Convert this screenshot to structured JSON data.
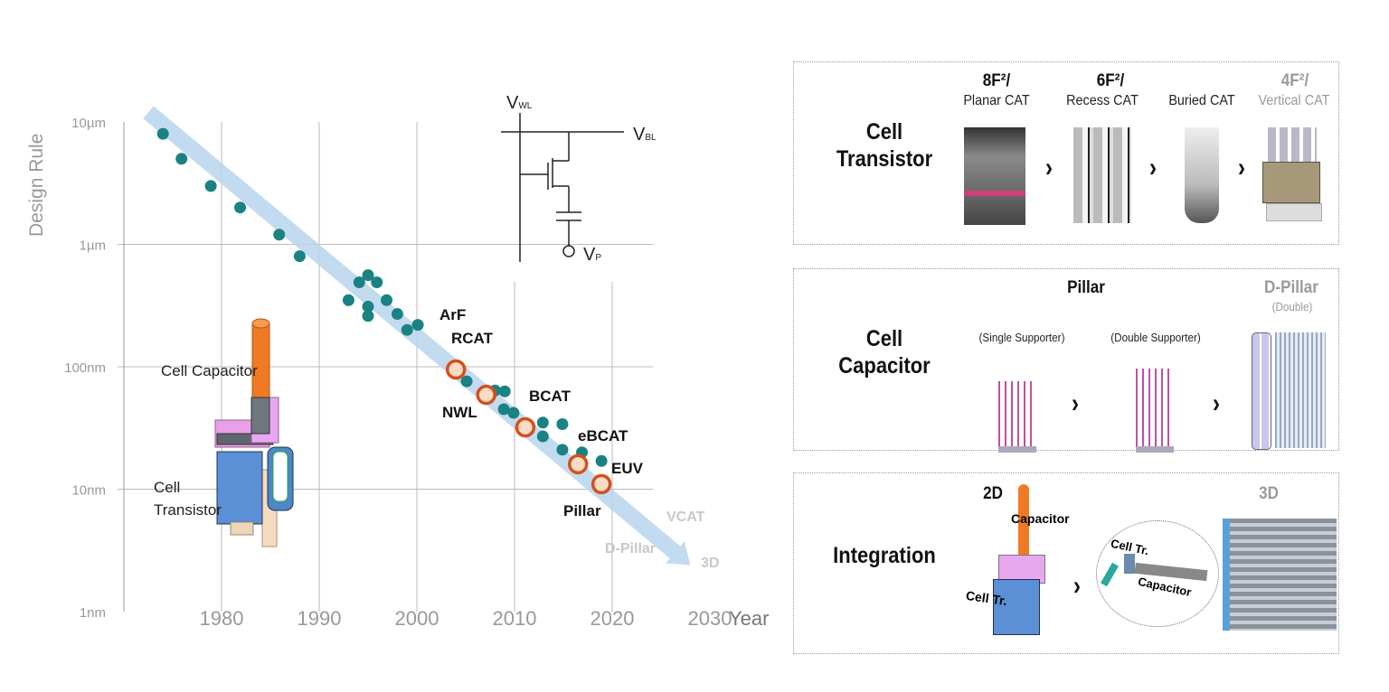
{
  "chart_data": {
    "type": "scatter",
    "title": "",
    "xlabel": "Year",
    "ylabel": "Design Rule",
    "xlim": [
      1970,
      2030
    ],
    "ylim_nm": [
      1,
      10000
    ],
    "yscale": "log",
    "grid": true,
    "xticks": [
      {
        "value": 1980,
        "label": "1980"
      },
      {
        "value": 1990,
        "label": "1990"
      },
      {
        "value": 2000,
        "label": "2000"
      },
      {
        "value": 2010,
        "label": "2010"
      },
      {
        "value": 2020,
        "label": "2020"
      },
      {
        "value": 2030,
        "label": "2030"
      }
    ],
    "yticks": [
      {
        "value": 10000,
        "label": "10µm"
      },
      {
        "value": 1000,
        "label": "1µm"
      },
      {
        "value": 100,
        "label": "100nm"
      },
      {
        "value": 10,
        "label": "10nm"
      },
      {
        "value": 1,
        "label": "1nm"
      }
    ],
    "series": [
      {
        "marker": "dot",
        "color": "#1a8282",
        "points": [
          [
            1974.0,
            8000
          ],
          [
            1975.9,
            5000
          ],
          [
            1978.9,
            3000
          ],
          [
            1981.9,
            2000
          ],
          [
            1985.9,
            1200
          ],
          [
            1988.0,
            800
          ],
          [
            1993.0,
            350
          ],
          [
            1994.1,
            490
          ],
          [
            1995.0,
            560
          ],
          [
            1995.9,
            490
          ],
          [
            1996.9,
            350
          ],
          [
            1995.0,
            310
          ],
          [
            1995.0,
            260
          ],
          [
            1998.0,
            270
          ],
          [
            1999.0,
            200
          ],
          [
            2000.1,
            220
          ],
          [
            2005.1,
            76
          ],
          [
            2008.0,
            64
          ],
          [
            2009.0,
            63
          ],
          [
            2008.9,
            45
          ],
          [
            2009.9,
            42
          ],
          [
            2012.9,
            35
          ],
          [
            2012.9,
            27
          ],
          [
            2014.9,
            34
          ],
          [
            2014.9,
            21
          ],
          [
            2016.9,
            20
          ],
          [
            2018.9,
            17
          ]
        ]
      },
      {
        "marker": "ring",
        "color": "#d4501e",
        "fill": "#f8dcc4",
        "points": [
          [
            2004.0,
            95
          ],
          [
            2007.1,
            59
          ],
          [
            2011.1,
            32
          ],
          [
            2016.5,
            16
          ],
          [
            2018.9,
            11
          ]
        ]
      }
    ],
    "trend_arrow": {
      "color": "#b9d5ee",
      "from": [
        1972.5,
        12000
      ],
      "to": [
        2028,
        2.4
      ]
    },
    "annotations": {
      "arf": "ArF",
      "rcat": "RCAT",
      "nwl": "NWL",
      "bcat": "BCAT",
      "ebcat": "eBCAT",
      "euv": "EUV",
      "pillar": "Pillar",
      "vcat": "VCAT",
      "dpillar": "D-Pillar",
      "three_d": "3D",
      "cell_capacitor": "Cell Capacitor",
      "cell_transistor_1": "Cell",
      "cell_transistor_2": "Transistor"
    },
    "circuit": {
      "vwl": "V",
      "vwl_sub": "WL",
      "vbl": "V",
      "vbl_sub": "BL",
      "vp": "V",
      "vp_sub": "P"
    }
  },
  "panels": {
    "transistor": {
      "title_1": "Cell",
      "title_2": "Transistor",
      "h8": "8F²/",
      "planar": "Planar CAT",
      "h6": "6F²/",
      "recess": "Recess CAT",
      "buried": "Buried CAT",
      "h4": "4F²/",
      "vertical": "Vertical CAT"
    },
    "capacitor": {
      "title_1": "Cell",
      "title_2": "Capacitor",
      "pillar": "Pillar",
      "single": "(Single Supporter)",
      "double_sup": "(Double Supporter)",
      "dpillar": "D-Pillar",
      "double": "(Double)"
    },
    "integration": {
      "title": "Integration",
      "two_d": "2D",
      "three_d": "3D",
      "capacitor": "Capacitor",
      "cell_tr": "Cell Tr.",
      "cell_tr_3d": "Cell Tr.",
      "capacitor_3d": "Capacitor"
    },
    "chevron": "›"
  }
}
